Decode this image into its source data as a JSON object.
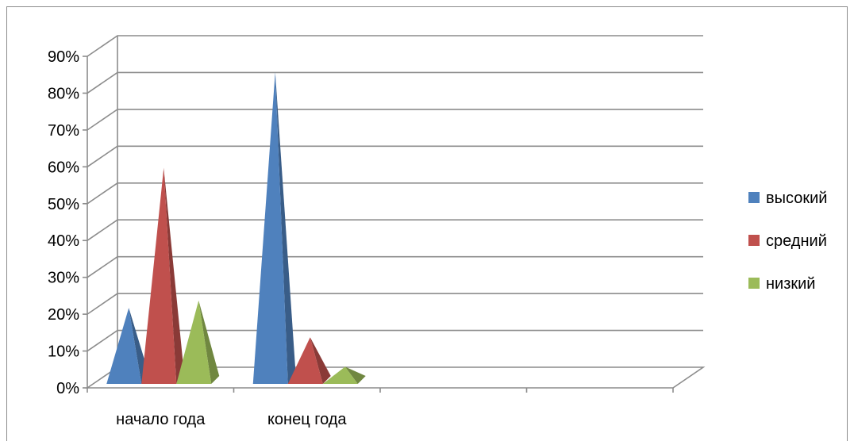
{
  "chart_data": {
    "type": "bar",
    "style": "3d-pyramid",
    "categories": [
      "начало года",
      "конец года"
    ],
    "series": [
      {
        "name": "высокий",
        "values": [
          20,
          84
        ],
        "color": "#4f81bd"
      },
      {
        "name": "средний",
        "values": [
          58,
          12
        ],
        "color": "#c0504d"
      },
      {
        "name": "низкий",
        "values": [
          22,
          4
        ],
        "color": "#9bbb59"
      }
    ],
    "y_ticks": [
      "0%",
      "10%",
      "20%",
      "30%",
      "40%",
      "50%",
      "60%",
      "70%",
      "80%",
      "90%"
    ],
    "ylim": [
      0,
      90
    ],
    "grid": true,
    "legend_position": "right"
  }
}
